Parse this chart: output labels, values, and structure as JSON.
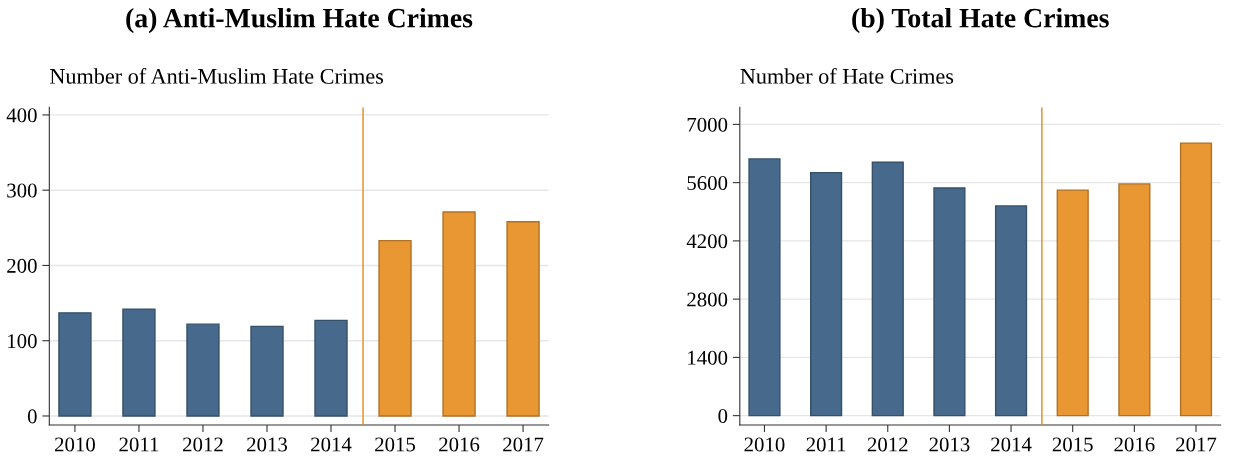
{
  "chart_data": [
    {
      "type": "bar",
      "title": "(a) Anti-Muslim Hate Crimes",
      "ylabel": "Number of Anti-Muslim Hate Crimes",
      "x": [
        2010,
        2011,
        2012,
        2013,
        2014,
        2015,
        2016,
        2017
      ],
      "values": [
        137,
        142,
        122,
        119,
        127,
        233,
        271,
        258
      ],
      "colors": [
        "#476a8c",
        "#476a8c",
        "#476a8c",
        "#476a8c",
        "#476a8c",
        "#e99733",
        "#e99733",
        "#e99733"
      ],
      "xlim": [
        2009.6,
        2017.4
      ],
      "xticks": [
        2010,
        2011,
        2012,
        2013,
        2014,
        2015,
        2016,
        2017
      ],
      "ylim": [
        -12,
        410
      ],
      "yticks": [
        0,
        100,
        200,
        300,
        400
      ],
      "grid": "y",
      "legend": false,
      "ref_lines": [
        {
          "axis": "x",
          "value": 2014.5,
          "color": "#e08a1e"
        }
      ]
    },
    {
      "type": "bar",
      "title": "(b) Total Hate Crimes",
      "ylabel": "Number of Hate Crimes",
      "x": [
        2010,
        2011,
        2012,
        2013,
        2014,
        2015,
        2016,
        2017
      ],
      "values": [
        6170,
        5840,
        6090,
        5470,
        5040,
        5420,
        5570,
        6550
      ],
      "colors": [
        "#476a8c",
        "#476a8c",
        "#476a8c",
        "#476a8c",
        "#476a8c",
        "#e99733",
        "#e99733",
        "#e99733"
      ],
      "xlim": [
        2009.6,
        2017.4
      ],
      "xticks": [
        2010,
        2011,
        2012,
        2013,
        2014,
        2015,
        2016,
        2017
      ],
      "ylim": [
        -225,
        7408
      ],
      "yticks": [
        0,
        1400,
        2800,
        4200,
        5600,
        7000
      ],
      "grid": "y",
      "legend": false,
      "ref_lines": [
        {
          "axis": "x",
          "value": 2014.5,
          "color": "#e08a1e"
        }
      ]
    }
  ]
}
